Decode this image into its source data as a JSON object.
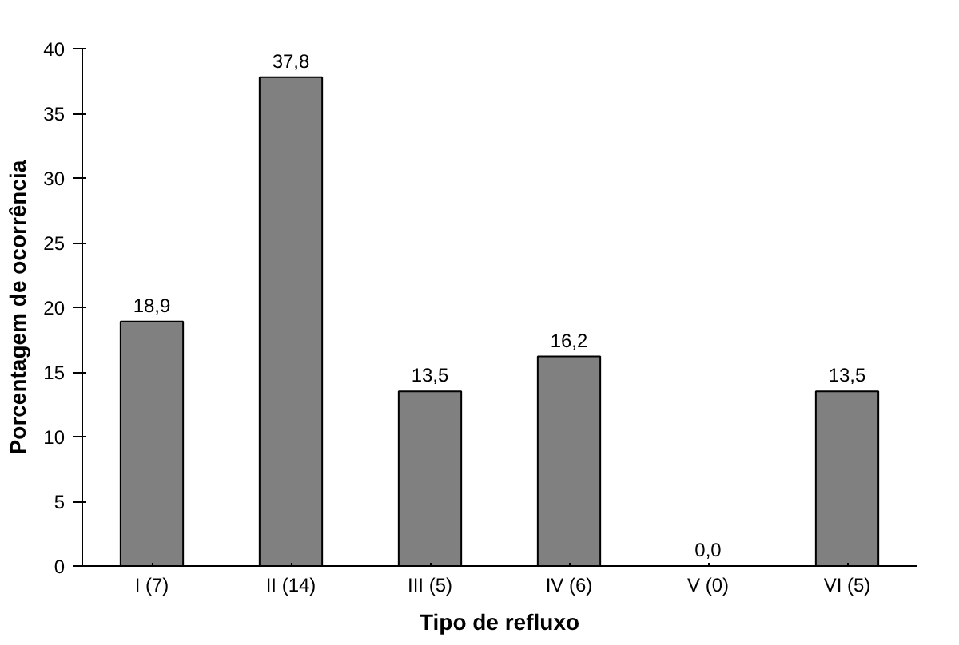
{
  "chart_data": {
    "type": "bar",
    "xlabel": "Tipo de refluxo",
    "ylabel": "Porcentagem de ocorrência",
    "categories": [
      "I (7)",
      "II (14)",
      "III (5)",
      "IV (6)",
      "V (0)",
      "VI (5)"
    ],
    "values": [
      18.9,
      37.8,
      13.5,
      16.2,
      0.0,
      13.5
    ],
    "value_labels": [
      "18,9",
      "37,8",
      "13,5",
      "16,2",
      "0,0",
      "13,5"
    ],
    "color": "#808080",
    "ylim": [
      0,
      40
    ],
    "yticks": [
      0,
      5,
      10,
      15,
      20,
      25,
      30,
      35,
      40
    ],
    "grid": false
  }
}
